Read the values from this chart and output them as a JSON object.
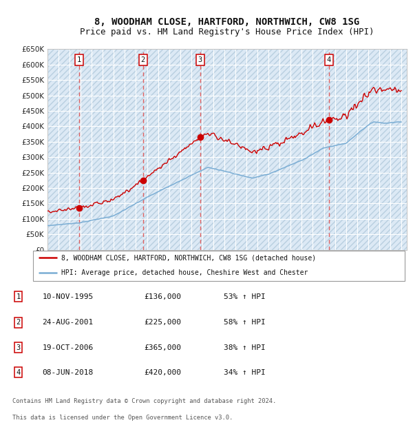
{
  "title": "8, WOODHAM CLOSE, HARTFORD, NORTHWICH, CW8 1SG",
  "subtitle": "Price paid vs. HM Land Registry's House Price Index (HPI)",
  "sales": [
    {
      "num": 1,
      "date_str": "10-NOV-1995",
      "date_x": 1995.86,
      "price": 136000
    },
    {
      "num": 2,
      "date_str": "24-AUG-2001",
      "date_x": 2001.64,
      "price": 225000
    },
    {
      "num": 3,
      "date_str": "19-OCT-2006",
      "date_x": 2006.8,
      "price": 365000
    },
    {
      "num": 4,
      "date_str": "08-JUN-2018",
      "date_x": 2018.44,
      "price": 420000
    }
  ],
  "legend_red": "8, WOODHAM CLOSE, HARTFORD, NORTHWICH, CW8 1SG (detached house)",
  "legend_blue": "HPI: Average price, detached house, Cheshire West and Chester",
  "footer1": "Contains HM Land Registry data © Crown copyright and database right 2024.",
  "footer2": "This data is licensed under the Open Government Licence v3.0.",
  "sale_annotations": [
    {
      "num": 1,
      "date_label": "10-NOV-1995",
      "price_label": "£136,000",
      "pct_label": "53% ↑ HPI"
    },
    {
      "num": 2,
      "date_label": "24-AUG-2001",
      "price_label": "£225,000",
      "pct_label": "58% ↑ HPI"
    },
    {
      "num": 3,
      "date_label": "19-OCT-2006",
      "price_label": "£365,000",
      "pct_label": "38% ↑ HPI"
    },
    {
      "num": 4,
      "date_label": "08-JUN-2018",
      "price_label": "£420,000",
      "pct_label": "34% ↑ HPI"
    }
  ],
  "ylim": [
    0,
    650000
  ],
  "xlim": [
    1993.0,
    2025.5
  ],
  "background_color": "#dce9f5",
  "grid_color": "#ffffff",
  "hatch_color": "#b8cfe0",
  "red_line_color": "#cc0000",
  "blue_line_color": "#7aadd4",
  "dashed_vline_color": "#e06060",
  "annotation_box_color": "#cc0000",
  "title_fontsize": 10,
  "subtitle_fontsize": 9
}
